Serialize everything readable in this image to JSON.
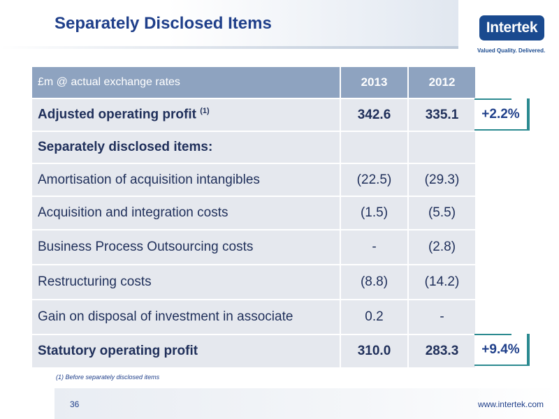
{
  "slide": {
    "title": "Separately Disclosed Items",
    "logo": {
      "name": "Intertek",
      "tagline": "Valued Quality. Delivered."
    },
    "table": {
      "header": {
        "label": "£m @ actual exchange rates",
        "col1": "2013",
        "col2": "2012"
      },
      "rows": [
        {
          "label": "Adjusted operating profit",
          "note": "(1)",
          "v1": "342.6",
          "v2": "335.1"
        },
        {
          "label": "Separately disclosed items:",
          "v1": "",
          "v2": ""
        },
        {
          "label": "Amortisation of acquisition intangibles",
          "v1": "(22.5)",
          "v2": "(29.3)"
        },
        {
          "label": "Acquisition and integration costs",
          "v1": "(1.5)",
          "v2": "(5.5)"
        },
        {
          "label": "Business Process Outsourcing costs",
          "v1": "-",
          "v2": "(2.8)"
        },
        {
          "label": "Restructuring costs",
          "v1": "(8.8)",
          "v2": "(14.2)"
        },
        {
          "label": "Gain on disposal of investment in associate",
          "v1": "0.2",
          "v2": "-"
        },
        {
          "label": "Statutory operating profit",
          "v1": "310.0",
          "v2": "283.3"
        }
      ]
    },
    "growth": {
      "adjusted": "+2.2%",
      "statutory": "+9.4%"
    },
    "footnote": "(1)    Before separately disclosed items",
    "page_number": "36",
    "url": "www.intertek.com",
    "colors": {
      "brand": "#1a4a8f",
      "accent": "#2b8a90",
      "header": "#8ea3c0"
    }
  }
}
